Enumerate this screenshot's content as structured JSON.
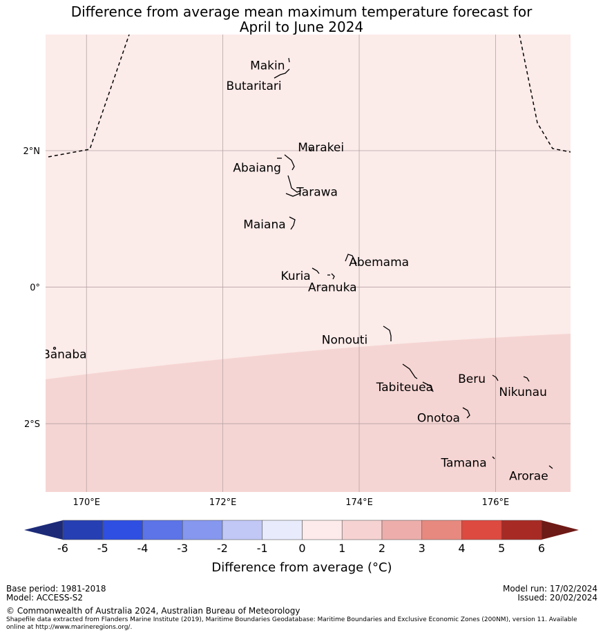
{
  "title_line1": "Difference from average mean maximum temperature forecast for",
  "title_line2": "April to June 2024",
  "map": {
    "lon_range": [
      169.4,
      177.1
    ],
    "lat_range": [
      -3.0,
      3.7
    ],
    "lat_ticks": [
      {
        "value": 2,
        "label": "2°N"
      },
      {
        "value": 0,
        "label": "0°"
      },
      {
        "value": -2,
        "label": "2°S"
      }
    ],
    "lon_ticks": [
      {
        "value": 170,
        "label": "170°E"
      },
      {
        "value": 172,
        "label": "172°E"
      },
      {
        "value": 174,
        "label": "174°E"
      },
      {
        "value": 176,
        "label": "176°E"
      }
    ],
    "regions": [
      {
        "category": "0 to 1",
        "color": "#fbebe9"
      },
      {
        "category": "1 to 2",
        "color": "#f5d5d3"
      }
    ],
    "eez_boundary_style": "dashed",
    "places": [
      {
        "name": "Makin",
        "lon": 172.4,
        "lat": 3.25
      },
      {
        "name": "Butaritari",
        "lon": 172.05,
        "lat": 2.95
      },
      {
        "name": "Marakei",
        "lon": 173.1,
        "lat": 2.05
      },
      {
        "name": "Abaiang",
        "lon": 172.15,
        "lat": 1.75
      },
      {
        "name": "Tarawa",
        "lon": 173.08,
        "lat": 1.4
      },
      {
        "name": "Maiana",
        "lon": 172.3,
        "lat": 0.92
      },
      {
        "name": "Abemama",
        "lon": 173.85,
        "lat": 0.37
      },
      {
        "name": "Kuria",
        "lon": 172.85,
        "lat": 0.17
      },
      {
        "name": "Aranuka",
        "lon": 173.25,
        "lat": 0.0
      },
      {
        "name": "Nonouti",
        "lon": 173.45,
        "lat": -0.77
      },
      {
        "name": "Banaba",
        "lon": 169.35,
        "lat": -0.98
      },
      {
        "name": "Beru",
        "lon": 175.45,
        "lat": -1.34
      },
      {
        "name": "Tabiteuea",
        "lon": 174.25,
        "lat": -1.46
      },
      {
        "name": "Nikunau",
        "lon": 176.05,
        "lat": -1.53
      },
      {
        "name": "Onotoa",
        "lon": 174.85,
        "lat": -1.91
      },
      {
        "name": "Tamana",
        "lon": 175.2,
        "lat": -2.57
      },
      {
        "name": "Arorae",
        "lon": 176.2,
        "lat": -2.76
      }
    ]
  },
  "colorbar": {
    "label": "Difference from average (°C)",
    "ticks": [
      "-6",
      "-5",
      "-4",
      "-3",
      "-2",
      "-1",
      "0",
      "1",
      "2",
      "3",
      "4",
      "5",
      "6"
    ],
    "under_color": "#1c2a78",
    "over_color": "#6e1a16",
    "colors": [
      "#263fb2",
      "#2f4fe2",
      "#5c74e8",
      "#8597ee",
      "#c1c8f6",
      "#e8ebfb",
      "#fdeaea",
      "#f6d3d2",
      "#edaeab",
      "#e8897f",
      "#dd4a40",
      "#a82a24"
    ]
  },
  "footer": {
    "base_period": "Base period: 1981-2018",
    "model": "Model: ACCESS-S2",
    "model_run": "Model run: 17/02/2024",
    "issued": "Issued: 20/02/2024",
    "copyright": "© Commonwealth of Australia 2024, Australian Bureau of Meteorology",
    "source_line1": "Shapefile data extracted from Flanders Marine Institute (2019), Maritime Boundaries Geodatabase: Maritime Boundaries and Exclusive Economic Zones (200NM), version 11. Available",
    "source_line2": "online at http://www.marineregions.org/."
  }
}
